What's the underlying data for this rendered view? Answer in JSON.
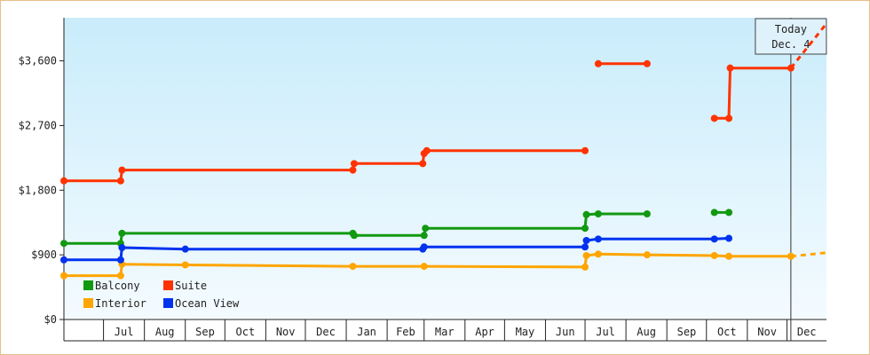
{
  "chart_data": {
    "type": "line",
    "title": "",
    "xlabel": "",
    "ylabel": "",
    "ylim": [
      0,
      4200
    ],
    "yticks": [
      {
        "value": 0,
        "label": "$0"
      },
      {
        "value": 900,
        "label": "$900"
      },
      {
        "value": 1800,
        "label": "$1,800"
      },
      {
        "value": 2700,
        "label": "$2,700"
      },
      {
        "value": 3600,
        "label": "$3,600"
      }
    ],
    "x_start": "2008-06-01",
    "x_end": "2009-12-31",
    "month_labels": [
      {
        "label": "Jul",
        "start": "2008-07-01",
        "end": "2008-08-01"
      },
      {
        "label": "Aug",
        "start": "2008-08-01",
        "end": "2008-09-01"
      },
      {
        "label": "Sep",
        "start": "2008-09-01",
        "end": "2008-10-01"
      },
      {
        "label": "Oct",
        "start": "2008-10-01",
        "end": "2008-11-01"
      },
      {
        "label": "Nov",
        "start": "2008-11-01",
        "end": "2008-12-01"
      },
      {
        "label": "Dec",
        "start": "2008-12-01",
        "end": "2009-01-01"
      },
      {
        "label": "Jan",
        "start": "2009-01-01",
        "end": "2009-02-01"
      },
      {
        "label": "Feb",
        "start": "2009-02-01",
        "end": "2009-03-01"
      },
      {
        "label": "Mar",
        "start": "2009-03-01",
        "end": "2009-04-01"
      },
      {
        "label": "Apr",
        "start": "2009-04-01",
        "end": "2009-05-01"
      },
      {
        "label": "May",
        "start": "2009-05-01",
        "end": "2009-06-01"
      },
      {
        "label": "Jun",
        "start": "2009-06-01",
        "end": "2009-07-01"
      },
      {
        "label": "Jul",
        "start": "2009-07-01",
        "end": "2009-08-01"
      },
      {
        "label": "Aug",
        "start": "2009-08-01",
        "end": "2009-09-01"
      },
      {
        "label": "Sep",
        "start": "2009-09-01",
        "end": "2009-10-01"
      },
      {
        "label": "Oct",
        "start": "2009-10-01",
        "end": "2009-11-01"
      },
      {
        "label": "Nov",
        "start": "2009-11-01",
        "end": "2009-12-01"
      },
      {
        "label": "Dec",
        "start": "2009-12-01",
        "end": "2010-01-01"
      }
    ],
    "today": {
      "line1": "Today",
      "line2": "Dec. 4",
      "date": "2009-12-04"
    },
    "grid": false,
    "legend_position": "bottom-left",
    "series": [
      {
        "name": "Balcony",
        "color": "#119911",
        "segments": [
          [
            [
              "2008-06-01",
              1060
            ],
            [
              "2008-07-14",
              1060
            ],
            [
              "2008-07-15",
              1200
            ],
            [
              "2009-01-06",
              1200
            ],
            [
              "2009-01-07",
              1170
            ],
            [
              "2009-03-01",
              1170
            ],
            [
              "2009-03-02",
              1270
            ],
            [
              "2009-07-01",
              1270
            ],
            [
              "2009-07-02",
              1460
            ],
            [
              "2009-07-11",
              1470
            ],
            [
              "2009-08-17",
              1470
            ]
          ],
          [
            [
              "2009-10-07",
              1490
            ],
            [
              "2009-10-18",
              1490
            ]
          ]
        ]
      },
      {
        "name": "Suite",
        "color": "#ff3300",
        "segments": [
          [
            [
              "2008-06-01",
              1930
            ],
            [
              "2008-07-14",
              1930
            ],
            [
              "2008-07-15",
              2080
            ],
            [
              "2008-09-01",
              2080
            ],
            [
              "2009-01-06",
              2080
            ],
            [
              "2009-01-07",
              2170
            ],
            [
              "2009-02-28",
              2170
            ],
            [
              "2009-03-01",
              2310
            ],
            [
              "2009-03-03",
              2350
            ],
            [
              "2009-07-01",
              2350
            ]
          ],
          [
            [
              "2009-07-11",
              3560
            ],
            [
              "2009-08-17",
              3560
            ]
          ],
          [
            [
              "2009-10-07",
              2800
            ],
            [
              "2009-10-18",
              2800
            ],
            [
              "2009-10-19",
              3500
            ],
            [
              "2009-12-04",
              3500
            ]
          ]
        ]
      },
      {
        "name": "Interior",
        "color": "#ffa500",
        "segments": [
          [
            [
              "2008-06-01",
              610
            ],
            [
              "2008-07-14",
              610
            ],
            [
              "2008-07-15",
              770
            ],
            [
              "2008-09-01",
              760
            ],
            [
              "2009-01-06",
              740
            ],
            [
              "2009-03-01",
              740
            ],
            [
              "2009-07-01",
              730
            ],
            [
              "2009-07-02",
              890
            ],
            [
              "2009-07-11",
              910
            ],
            [
              "2009-08-17",
              900
            ],
            [
              "2009-10-07",
              890
            ],
            [
              "2009-10-18",
              880
            ],
            [
              "2009-12-04",
              880
            ]
          ]
        ],
        "projection": [
          [
            "2009-12-04",
            880
          ],
          [
            "2009-12-31",
            930
          ]
        ]
      },
      {
        "name": "Ocean View",
        "color": "#0033ee",
        "segments": [
          [
            [
              "2008-06-01",
              830
            ],
            [
              "2008-07-14",
              830
            ],
            [
              "2008-07-15",
              1000
            ],
            [
              "2008-09-01",
              980
            ],
            [
              "2009-02-28",
              980
            ],
            [
              "2009-03-01",
              1010
            ],
            [
              "2009-07-01",
              1010
            ],
            [
              "2009-07-02",
              1100
            ],
            [
              "2009-07-11",
              1120
            ],
            [
              "2009-08-17",
              1120
            ],
            [
              "2009-10-07",
              1120
            ],
            [
              "2009-10-18",
              1130
            ]
          ]
        ]
      }
    ],
    "suite_projection": [
      [
        "2009-12-04",
        3500
      ],
      [
        "2009-12-31",
        4120
      ]
    ]
  }
}
